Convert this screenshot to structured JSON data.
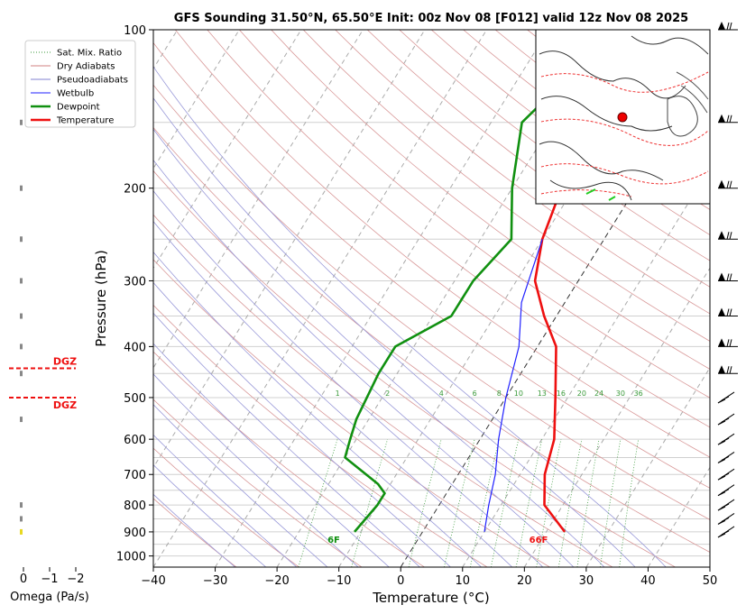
{
  "chart_data": {
    "type": "line",
    "subtype": "skew-t log-p sounding",
    "title": "GFS Sounding 31.50°N, 65.50°E Init: 00z Nov 08 [F012] valid 12z Nov 08 2025",
    "xlabel": "Temperature (°C)",
    "ylabel": "Pressure (hPa)",
    "xlim": [
      -40,
      50
    ],
    "ylim": [
      1050,
      100
    ],
    "y_scale": "log",
    "x_ticks": [
      "−40",
      "−30",
      "−20",
      "−10",
      "0",
      "10",
      "20",
      "30",
      "40",
      "50"
    ],
    "y_ticks": [
      "100",
      "200",
      "300",
      "400",
      "500",
      "600",
      "700",
      "800",
      "900",
      "1000"
    ],
    "grid": true,
    "legend_position": "top-left",
    "legend": [
      {
        "label": "Sat. Mix. Ratio",
        "color": "#3a9a3a",
        "style": "dotted"
      },
      {
        "label": "Dry Adiabats",
        "color": "#d08080",
        "style": "solid"
      },
      {
        "label": "Pseudoadiabats",
        "color": "#8080d0",
        "style": "solid"
      },
      {
        "label": "Wetbulb",
        "color": "#2020ff",
        "style": "solid"
      },
      {
        "label": "Dewpoint",
        "color": "#109010",
        "style": "solid"
      },
      {
        "label": "Temperature",
        "color": "#ee1010",
        "style": "solid"
      }
    ],
    "series": [
      {
        "name": "Temperature",
        "color": "#ee1010",
        "points": [
          [
            23,
            900
          ],
          [
            17,
            800
          ],
          [
            14,
            700
          ],
          [
            12,
            600
          ],
          [
            8,
            500
          ],
          [
            3,
            400
          ],
          [
            -2,
            350
          ],
          [
            -7,
            300
          ],
          [
            -10,
            250
          ],
          [
            -12,
            200
          ],
          [
            -8,
            150
          ],
          [
            -6,
            100
          ]
        ]
      },
      {
        "name": "Dewpoint",
        "color": "#109010",
        "points": [
          [
            -11,
            900
          ],
          [
            -10,
            800
          ],
          [
            -10,
            760
          ],
          [
            -12,
            730
          ],
          [
            -20,
            650
          ],
          [
            -21,
            600
          ],
          [
            -22,
            550
          ],
          [
            -23,
            450
          ],
          [
            -23,
            400
          ],
          [
            -17,
            350
          ],
          [
            -17,
            300
          ],
          [
            -15,
            250
          ],
          [
            -20,
            200
          ],
          [
            -25,
            150
          ],
          [
            -19,
            100
          ]
        ]
      },
      {
        "name": "Wetbulb",
        "color": "#2020ff",
        "points": [
          [
            10,
            900
          ],
          [
            8,
            800
          ],
          [
            6,
            700
          ],
          [
            3,
            600
          ],
          [
            0,
            500
          ],
          [
            -3,
            400
          ],
          [
            -7,
            330
          ],
          [
            -10,
            250
          ]
        ]
      }
    ],
    "mixing_ratio_labels": [
      "1",
      "2",
      "4",
      "6",
      "8",
      "10",
      "13",
      "16",
      "20",
      "24",
      "30",
      "36"
    ],
    "surface_labels": {
      "dewpoint": "6F",
      "temperature": "66F"
    },
    "omega_panel": {
      "xlabel": "Omega (Pa/s)",
      "x_ticks": [
        "0",
        "−1",
        "−2"
      ],
      "dgz_label": "DGZ",
      "dgz_pressures": [
        440,
        500
      ]
    }
  }
}
